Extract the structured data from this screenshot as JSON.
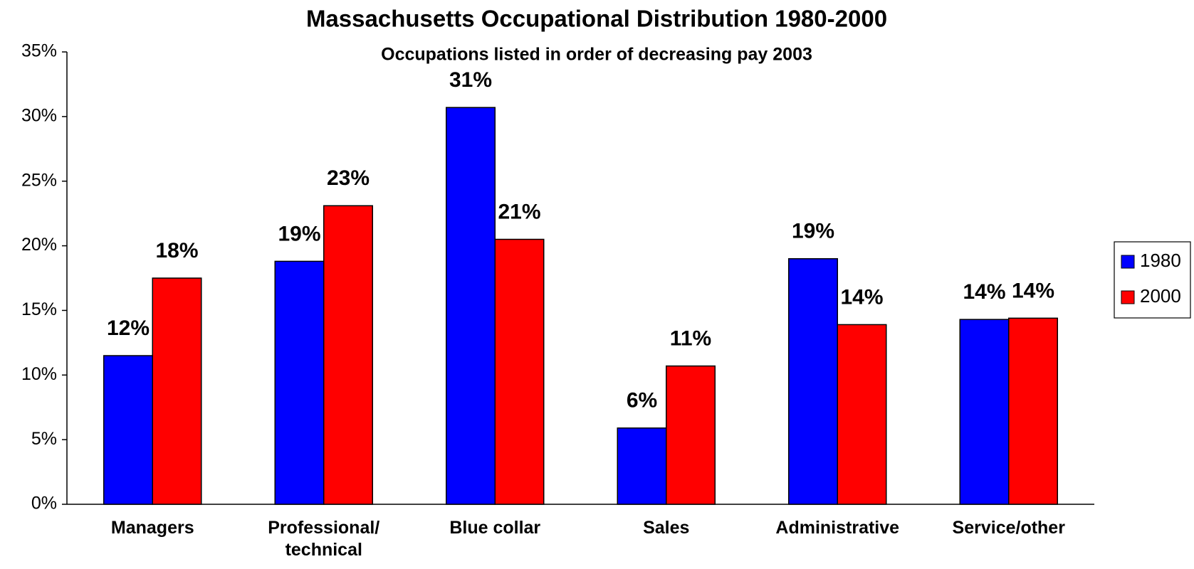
{
  "chart_data": {
    "type": "bar",
    "title": "Massachusetts Occupational Distribution 1980-2000",
    "subtitle": "Occupations listed in order of decreasing pay 2003",
    "categories": [
      "Managers",
      "Professional/\ntechnical",
      "Blue collar",
      "Sales",
      "Administrative",
      "Service/other"
    ],
    "series": [
      {
        "name": "1980",
        "color": "#0000ff",
        "values": [
          11.5,
          18.8,
          30.7,
          5.9,
          19.0,
          14.3
        ],
        "value_labels": [
          "12%",
          "19%",
          "31%",
          "6%",
          "19%",
          "14%"
        ]
      },
      {
        "name": "2000",
        "color": "#ff0000",
        "values": [
          17.5,
          23.1,
          20.5,
          10.7,
          13.9,
          14.4
        ],
        "value_labels": [
          "18%",
          "23%",
          "21%",
          "11%",
          "14%",
          "14%"
        ]
      }
    ],
    "ylim": [
      0,
      35
    ],
    "yticks": [
      {
        "value": 0,
        "label": "0%"
      },
      {
        "value": 5,
        "label": "5%"
      },
      {
        "value": 10,
        "label": "10%"
      },
      {
        "value": 15,
        "label": "15%"
      },
      {
        "value": 20,
        "label": "20%"
      },
      {
        "value": 25,
        "label": "25%"
      },
      {
        "value": 30,
        "label": "30%"
      },
      {
        "value": 35,
        "label": "35%"
      }
    ],
    "legend": "right"
  }
}
